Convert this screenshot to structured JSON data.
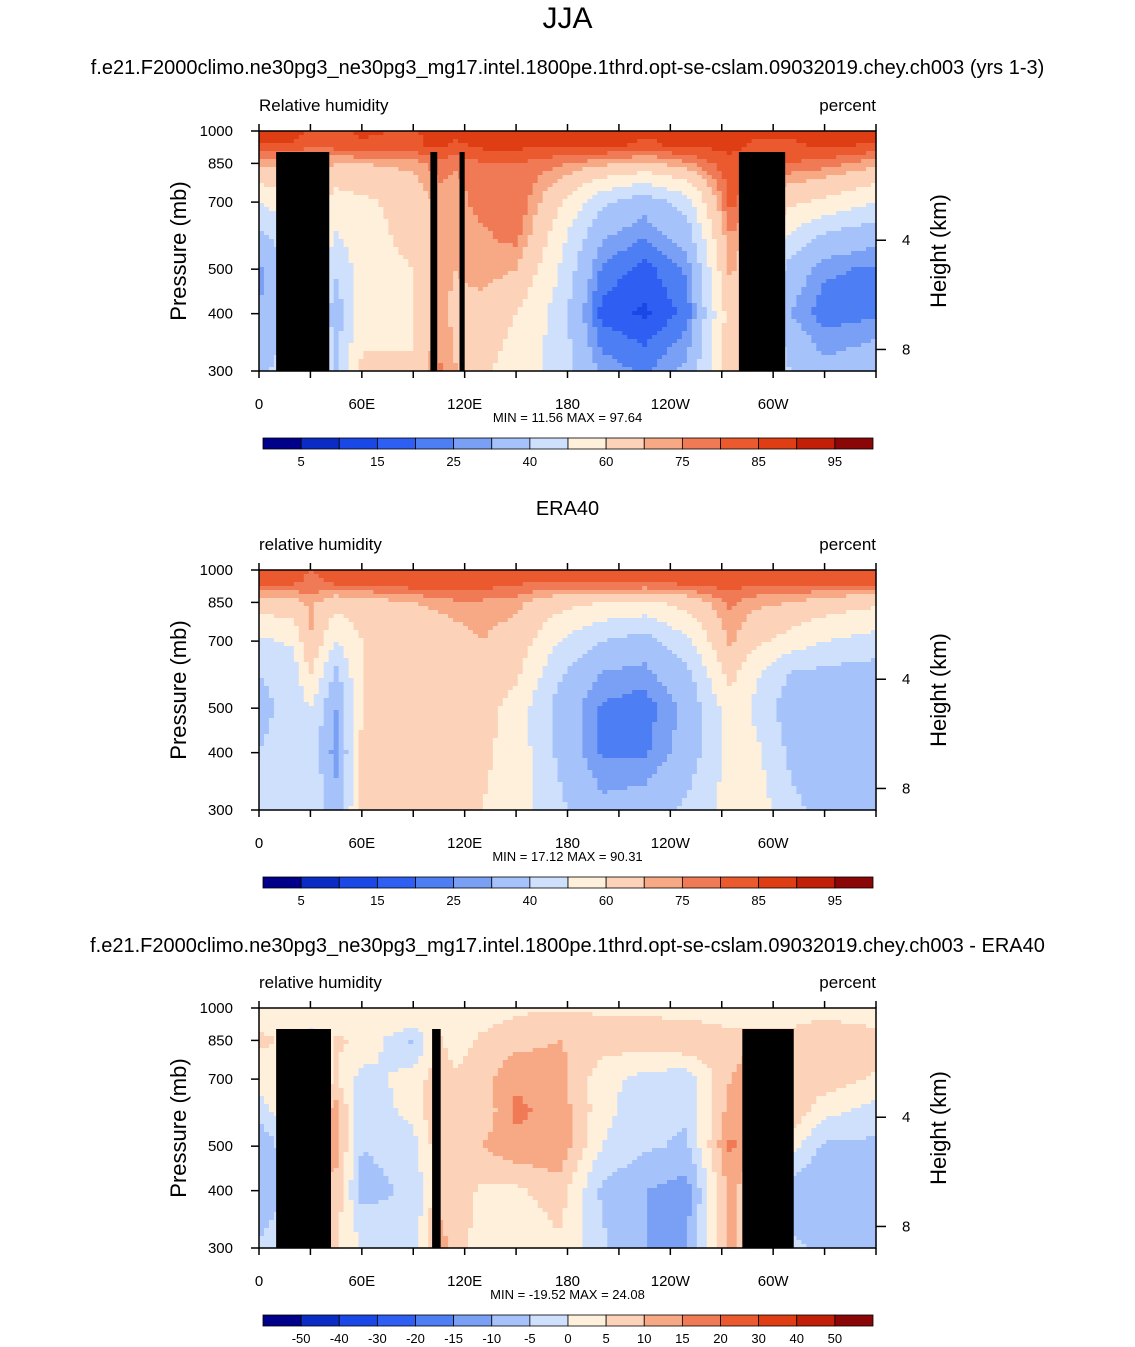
{
  "page_title": "JJA",
  "colors": {
    "rh_palette": [
      "#00008a",
      "#0a2cc4",
      "#1a48e6",
      "#2e5ff2",
      "#4d7ef4",
      "#7aa0f6",
      "#a6c2fa",
      "#cfe0fc",
      "#fff0dc",
      "#fcd2b8",
      "#f7a985",
      "#f07a55",
      "#ea5a2e",
      "#df3e14",
      "#c21f08",
      "#8b0606"
    ],
    "diff_palette": [
      "#00008a",
      "#0a2cc4",
      "#1a48e6",
      "#2e5ff2",
      "#4d7ef4",
      "#7aa0f6",
      "#a6c2fa",
      "#cfe0fc",
      "#fff0dc",
      "#fcd2b8",
      "#f7a985",
      "#f07a55",
      "#ea5a2e",
      "#df3e14",
      "#c21f08",
      "#8b0606"
    ],
    "topography": "#000000"
  },
  "chart_data": [
    {
      "type": "heatmap",
      "title": "f.e21.F2000climo.ne30pg3_ne30pg3_mg17.intel.1800pe.1thrd.opt-se-cslam.09032019.chey.ch003 (yrs 1-3)",
      "left_string": "Relative humidity",
      "right_string": "percent",
      "ylabel": "Pressure (mb)",
      "y2label": "Height (km)",
      "x_ticks": [
        "0",
        "60E",
        "120E",
        "180",
        "120W",
        "60W"
      ],
      "y_ticks": [
        "300",
        "400",
        "500",
        "700",
        "850",
        "1000"
      ],
      "y2_ticks": [
        "8",
        "4"
      ],
      "stats": "MIN =  11.56  MAX =  97.64",
      "min": 11.56,
      "max": 97.64,
      "colorbar_labels": [
        "5",
        "15",
        "25",
        "40",
        "60",
        "75",
        "85",
        "95"
      ],
      "lon_range": [
        0,
        360
      ],
      "pressure_range": [
        1000,
        300
      ],
      "field_lon": [
        0,
        20,
        30,
        45,
        60,
        90,
        105,
        115,
        130,
        150,
        175,
        200,
        225,
        250,
        275,
        290,
        310,
        330,
        360
      ],
      "field_p": [
        1000,
        925,
        850,
        700,
        600,
        500,
        400,
        300
      ],
      "field": [
        [
          88,
          88,
          84,
          84,
          86,
          84,
          88,
          86,
          88,
          88,
          86,
          88,
          86,
          86,
          88,
          86,
          86,
          88,
          88
        ],
        [
          84,
          84,
          80,
          82,
          84,
          84,
          86,
          84,
          86,
          86,
          86,
          86,
          84,
          86,
          86,
          84,
          84,
          86,
          84
        ],
        [
          72,
          70,
          74,
          70,
          70,
          72,
          78,
          76,
          80,
          80,
          76,
          72,
          68,
          74,
          84,
          82,
          80,
          78,
          72
        ],
        [
          50,
          58,
          72,
          55,
          58,
          64,
          72,
          72,
          78,
          80,
          62,
          42,
          34,
          45,
          82,
          74,
          62,
          58,
          50
        ],
        [
          38,
          48,
          64,
          50,
          55,
          64,
          72,
          72,
          74,
          78,
          55,
          32,
          26,
          36,
          76,
          66,
          50,
          40,
          34
        ],
        [
          28,
          42,
          60,
          42,
          55,
          60,
          72,
          70,
          74,
          70,
          50,
          24,
          18,
          26,
          72,
          60,
          36,
          26,
          24
        ],
        [
          30,
          40,
          58,
          34,
          55,
          60,
          72,
          68,
          66,
          60,
          46,
          18,
          14,
          22,
          66,
          56,
          30,
          22,
          24
        ],
        [
          38,
          45,
          60,
          40,
          62,
          60,
          76,
          70,
          62,
          56,
          46,
          28,
          24,
          32,
          66,
          58,
          40,
          32,
          36
        ]
      ],
      "levels": [
        5,
        10,
        15,
        20,
        25,
        30,
        40,
        50,
        60,
        70,
        75,
        80,
        85,
        90,
        95
      ],
      "topography_lon": [
        10,
        28,
        28,
        34,
        34,
        41,
        100,
        104,
        118,
        120,
        280,
        307
      ],
      "topography": [
        {
          "lon0": 10,
          "lon1": 41,
          "p_top": 900
        },
        {
          "lon0": 27,
          "lon1": 34,
          "p_top": 850
        },
        {
          "lon0": 100,
          "lon1": 104,
          "p_top": 900
        },
        {
          "lon0": 117,
          "lon1": 120,
          "p_top": 900
        },
        {
          "lon0": 280,
          "lon1": 307,
          "p_top": 900
        }
      ]
    },
    {
      "type": "heatmap",
      "title": "ERA40",
      "left_string": "relative humidity",
      "right_string": "percent",
      "ylabel": "Pressure (mb)",
      "y2label": "Height (km)",
      "x_ticks": [
        "0",
        "60E",
        "120E",
        "180",
        "120W",
        "60W"
      ],
      "y_ticks": [
        "300",
        "400",
        "500",
        "700",
        "850",
        "1000"
      ],
      "y2_ticks": [
        "8",
        "4"
      ],
      "stats": "MIN =  17.12  MAX =  90.31",
      "min": 17.12,
      "max": 90.31,
      "colorbar_labels": [
        "5",
        "15",
        "25",
        "40",
        "60",
        "75",
        "85",
        "95"
      ],
      "lon_range": [
        0,
        360
      ],
      "pressure_range": [
        1000,
        300
      ],
      "field_lon": [
        0,
        20,
        30,
        45,
        60,
        90,
        105,
        115,
        130,
        150,
        175,
        200,
        225,
        250,
        275,
        290,
        310,
        330,
        360
      ],
      "field_p": [
        1000,
        925,
        850,
        700,
        600,
        500,
        400,
        300
      ],
      "field": [
        [
          84,
          84,
          80,
          84,
          84,
          84,
          84,
          84,
          84,
          84,
          84,
          84,
          84,
          84,
          84,
          84,
          84,
          84,
          84
        ],
        [
          80,
          80,
          78,
          80,
          80,
          82,
          82,
          82,
          82,
          80,
          78,
          78,
          78,
          80,
          82,
          80,
          80,
          80,
          80
        ],
        [
          66,
          66,
          72,
          64,
          66,
          70,
          72,
          74,
          74,
          72,
          64,
          60,
          58,
          64,
          76,
          72,
          70,
          66,
          62
        ],
        [
          48,
          52,
          70,
          50,
          60,
          62,
          64,
          66,
          70,
          66,
          50,
          40,
          36,
          48,
          72,
          62,
          56,
          50,
          46
        ],
        [
          40,
          44,
          62,
          38,
          60,
          62,
          62,
          64,
          68,
          62,
          42,
          30,
          28,
          38,
          64,
          52,
          40,
          38,
          36
        ],
        [
          38,
          42,
          50,
          30,
          60,
          62,
          64,
          62,
          64,
          56,
          36,
          24,
          22,
          32,
          56,
          48,
          34,
          32,
          30
        ],
        [
          40,
          44,
          46,
          26,
          62,
          64,
          64,
          60,
          62,
          56,
          38,
          24,
          24,
          34,
          54,
          52,
          38,
          32,
          34
        ],
        [
          42,
          46,
          50,
          34,
          62,
          64,
          64,
          62,
          60,
          56,
          42,
          32,
          34,
          42,
          54,
          56,
          42,
          38,
          40
        ]
      ],
      "levels": [
        5,
        10,
        15,
        20,
        25,
        30,
        40,
        50,
        60,
        70,
        75,
        80,
        85,
        90,
        95
      ],
      "topography": []
    },
    {
      "type": "heatmap",
      "title": "f.e21.F2000climo.ne30pg3_ne30pg3_mg17.intel.1800pe.1thrd.opt-se-cslam.09032019.chey.ch003 - ERA40",
      "left_string": "relative humidity",
      "right_string": "percent",
      "ylabel": "Pressure (mb)",
      "y2label": "Height (km)",
      "x_ticks": [
        "0",
        "60E",
        "120E",
        "180",
        "120W",
        "60W"
      ],
      "y_ticks": [
        "300",
        "400",
        "500",
        "700",
        "850",
        "1000"
      ],
      "y2_ticks": [
        "8",
        "4"
      ],
      "stats": "MIN = -19.52  MAX =  24.08",
      "min": -19.52,
      "max": 24.08,
      "colorbar_labels": [
        "-50",
        "-40",
        "-30",
        "-20",
        "-15",
        "-10",
        "-5",
        "0",
        "5",
        "10",
        "15",
        "20",
        "30",
        "40",
        "50"
      ],
      "lon_range": [
        0,
        360
      ],
      "pressure_range": [
        1000,
        300
      ],
      "field_lon": [
        0,
        20,
        30,
        45,
        60,
        90,
        105,
        115,
        130,
        150,
        175,
        200,
        225,
        250,
        275,
        290,
        310,
        330,
        360
      ],
      "field_p": [
        1000,
        925,
        850,
        700,
        600,
        500,
        400,
        300
      ],
      "field": [
        [
          2,
          2,
          2,
          2,
          2,
          2,
          2,
          2,
          2,
          4,
          4,
          4,
          4,
          2,
          2,
          2,
          2,
          2,
          2
        ],
        [
          4,
          4,
          2,
          2,
          4,
          2,
          4,
          2,
          4,
          6,
          8,
          6,
          6,
          6,
          4,
          4,
          4,
          6,
          4
        ],
        [
          6,
          4,
          -4,
          6,
          4,
          -6,
          6,
          2,
          6,
          8,
          10,
          8,
          8,
          10,
          8,
          10,
          8,
          10,
          8
        ],
        [
          2,
          6,
          2,
          5,
          -2,
          2,
          8,
          6,
          8,
          14,
          12,
          2,
          -2,
          -3,
          10,
          12,
          6,
          8,
          4
        ],
        [
          -2,
          4,
          2,
          12,
          -4,
          2,
          10,
          8,
          6,
          16,
          13,
          2,
          -4,
          -4,
          12,
          14,
          10,
          2,
          -2
        ],
        [
          -10,
          0,
          10,
          12,
          -5,
          -2,
          8,
          8,
          10,
          14,
          14,
          0,
          -4,
          -6,
          16,
          12,
          2,
          -6,
          -6
        ],
        [
          -10,
          -4,
          12,
          8,
          -7,
          -4,
          8,
          8,
          4,
          4,
          8,
          -6,
          -10,
          -12,
          12,
          4,
          -8,
          -10,
          -10
        ],
        [
          -4,
          -1,
          10,
          6,
          0,
          -4,
          12,
          8,
          2,
          0,
          4,
          -4,
          -10,
          -10,
          12,
          2,
          -4,
          -6,
          -6
        ]
      ],
      "levels": [
        -50,
        -40,
        -30,
        -20,
        -15,
        -10,
        -5,
        0,
        5,
        10,
        15,
        20,
        30,
        40,
        50
      ],
      "topography": [
        {
          "lon0": 10,
          "lon1": 42,
          "p_top": 900
        },
        {
          "lon0": 27,
          "lon1": 35,
          "p_top": 850
        },
        {
          "lon0": 101,
          "lon1": 106,
          "p_top": 900
        },
        {
          "lon0": 282,
          "lon1": 312,
          "p_top": 900
        }
      ]
    }
  ]
}
